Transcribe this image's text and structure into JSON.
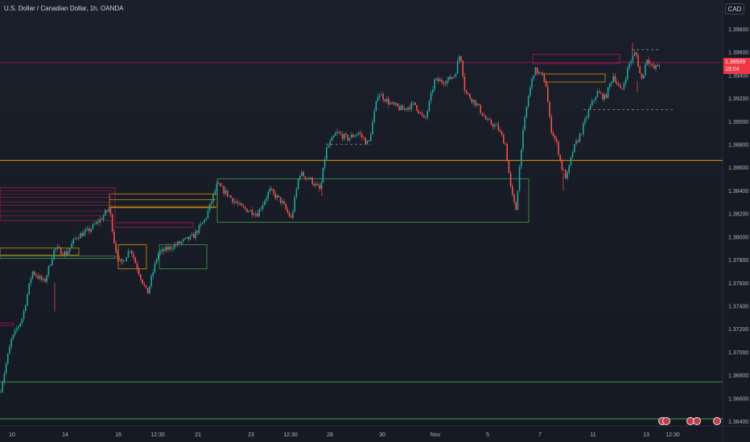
{
  "header": {
    "title": "U.S. Dollar / Canadian Dollar, 1h, OANDA",
    "currency": "CAD"
  },
  "price_badge": {
    "price": "1.39509",
    "countdown": "19:04"
  },
  "colors": {
    "up": "#26a69a",
    "down": "#ef5350",
    "orange_line": "#f7a600",
    "green_line": "#4caf50",
    "red_line": "#c2185b",
    "badge": "#f23645"
  },
  "chart_data": {
    "type": "candlestick",
    "title": "U.S. Dollar / Canadian Dollar, 1h, OANDA",
    "ylim": [
      1.3635,
      1.3995
    ],
    "y_ticks": [
      "1.39800",
      "1.39600",
      "1.39400",
      "1.39200",
      "1.39000",
      "1.38800",
      "1.38600",
      "1.38400",
      "1.38200",
      "1.38000",
      "1.37800",
      "1.37600",
      "1.37400",
      "1.37200",
      "1.37000",
      "1.36800",
      "1.36600",
      "1.36400"
    ],
    "x_ticks": [
      "10",
      "14",
      "16",
      "12:30",
      "21",
      "23",
      "12:30",
      "28",
      "30",
      "Nov",
      "5",
      "7",
      "11",
      "13",
      "12:30"
    ],
    "price_path": [
      [
        0,
        1.3665
      ],
      [
        14,
        1.371
      ],
      [
        28,
        1.373
      ],
      [
        40,
        1.377
      ],
      [
        55,
        1.376
      ],
      [
        68,
        1.379
      ],
      [
        82,
        1.3785
      ],
      [
        95,
        1.38
      ],
      [
        110,
        1.3805
      ],
      [
        125,
        1.3815
      ],
      [
        136,
        1.3825
      ],
      [
        143,
        1.379
      ],
      [
        150,
        1.3775
      ],
      [
        162,
        1.379
      ],
      [
        172,
        1.377
      ],
      [
        183,
        1.375
      ],
      [
        196,
        1.3785
      ],
      [
        210,
        1.379
      ],
      [
        225,
        1.3795
      ],
      [
        240,
        1.38
      ],
      [
        255,
        1.3815
      ],
      [
        270,
        1.3845
      ],
      [
        285,
        1.3835
      ],
      [
        300,
        1.3825
      ],
      [
        320,
        1.382
      ],
      [
        335,
        1.384
      ],
      [
        350,
        1.383
      ],
      [
        362,
        1.3815
      ],
      [
        372,
        1.3855
      ],
      [
        385,
        1.385
      ],
      [
        398,
        1.384
      ],
      [
        405,
        1.3875
      ],
      [
        418,
        1.389
      ],
      [
        432,
        1.3885
      ],
      [
        445,
        1.389
      ],
      [
        458,
        1.388
      ],
      [
        470,
        1.3925
      ],
      [
        485,
        1.3915
      ],
      [
        500,
        1.391
      ],
      [
        515,
        1.3915
      ],
      [
        528,
        1.39
      ],
      [
        540,
        1.3935
      ],
      [
        555,
        1.3935
      ],
      [
        565,
        1.394
      ],
      [
        572,
        1.396
      ],
      [
        578,
        1.3925
      ],
      [
        592,
        1.3915
      ],
      [
        605,
        1.39
      ],
      [
        618,
        1.3895
      ],
      [
        628,
        1.388
      ],
      [
        635,
        1.384
      ],
      [
        641,
        1.3822
      ],
      [
        648,
        1.388
      ],
      [
        656,
        1.392
      ],
      [
        664,
        1.3945
      ],
      [
        672,
        1.394
      ],
      [
        678,
        1.3935
      ],
      [
        684,
        1.3895
      ],
      [
        692,
        1.388
      ],
      [
        698,
        1.386
      ],
      [
        704,
        1.385
      ],
      [
        712,
        1.3875
      ],
      [
        722,
        1.389
      ],
      [
        732,
        1.391
      ],
      [
        742,
        1.3925
      ],
      [
        752,
        1.392
      ],
      [
        762,
        1.394
      ],
      [
        772,
        1.3925
      ],
      [
        782,
        1.395
      ],
      [
        790,
        1.396
      ],
      [
        797,
        1.3935
      ],
      [
        804,
        1.3955
      ],
      [
        812,
        1.3945
      ],
      [
        820,
        1.395
      ]
    ],
    "horizontal_lines": [
      {
        "price": 1.39509,
        "color": "red",
        "style": "solid",
        "x_from": 0
      },
      {
        "price": 1.3866,
        "color": "orange",
        "style": "solid",
        "x_from": 0
      },
      {
        "price": 1.3674,
        "color": "green",
        "style": "solid",
        "x_from": 0
      },
      {
        "price": 1.3642,
        "color": "green",
        "style": "solid",
        "x_from": 0
      },
      {
        "price": 1.388,
        "color": "gray",
        "style": "dashed",
        "x_from": 405,
        "x_to": 460
      },
      {
        "price": 1.391,
        "color": "gray",
        "style": "dashed",
        "x_from": 725,
        "x_to": 838
      },
      {
        "price": 1.3962,
        "color": "gray",
        "style": "dashed",
        "x_from": 785,
        "x_to": 820
      }
    ],
    "zones": [
      {
        "x0": 0,
        "x1": 143,
        "p_top": 1.38425,
        "p_bot": 1.3814,
        "color": "red"
      },
      {
        "x0": 0,
        "x1": 98,
        "p_top": 1.379,
        "p_bot": 1.3784,
        "color": "orange"
      },
      {
        "x0": 0,
        "x1": 143,
        "p_top": 1.3783,
        "p_bot": 1.3781,
        "color": "green"
      },
      {
        "x0": 136,
        "x1": 270,
        "p_top": 1.3837,
        "p_bot": 1.3826,
        "color": "orange"
      },
      {
        "x0": 143,
        "x1": 240,
        "p_top": 1.3812,
        "p_bot": 1.3808,
        "color": "red"
      },
      {
        "x0": 147,
        "x1": 182,
        "p_top": 1.3793,
        "p_bot": 1.3772,
        "color": "orange"
      },
      {
        "x0": 198,
        "x1": 257,
        "p_top": 1.3793,
        "p_bot": 1.3772,
        "color": "green"
      },
      {
        "x0": 270,
        "x1": 657,
        "p_top": 1.385,
        "p_bot": 1.38125,
        "color": "green"
      },
      {
        "x0": 662,
        "x1": 770,
        "p_top": 1.3958,
        "p_bot": 1.395,
        "color": "red"
      },
      {
        "x0": 676,
        "x1": 752,
        "p_top": 1.3941,
        "p_bot": 1.3934,
        "color": "orange"
      },
      {
        "x0": 0,
        "x1": 17,
        "p_top": 1.3725,
        "p_bot": 1.3723,
        "color": "red"
      }
    ]
  }
}
